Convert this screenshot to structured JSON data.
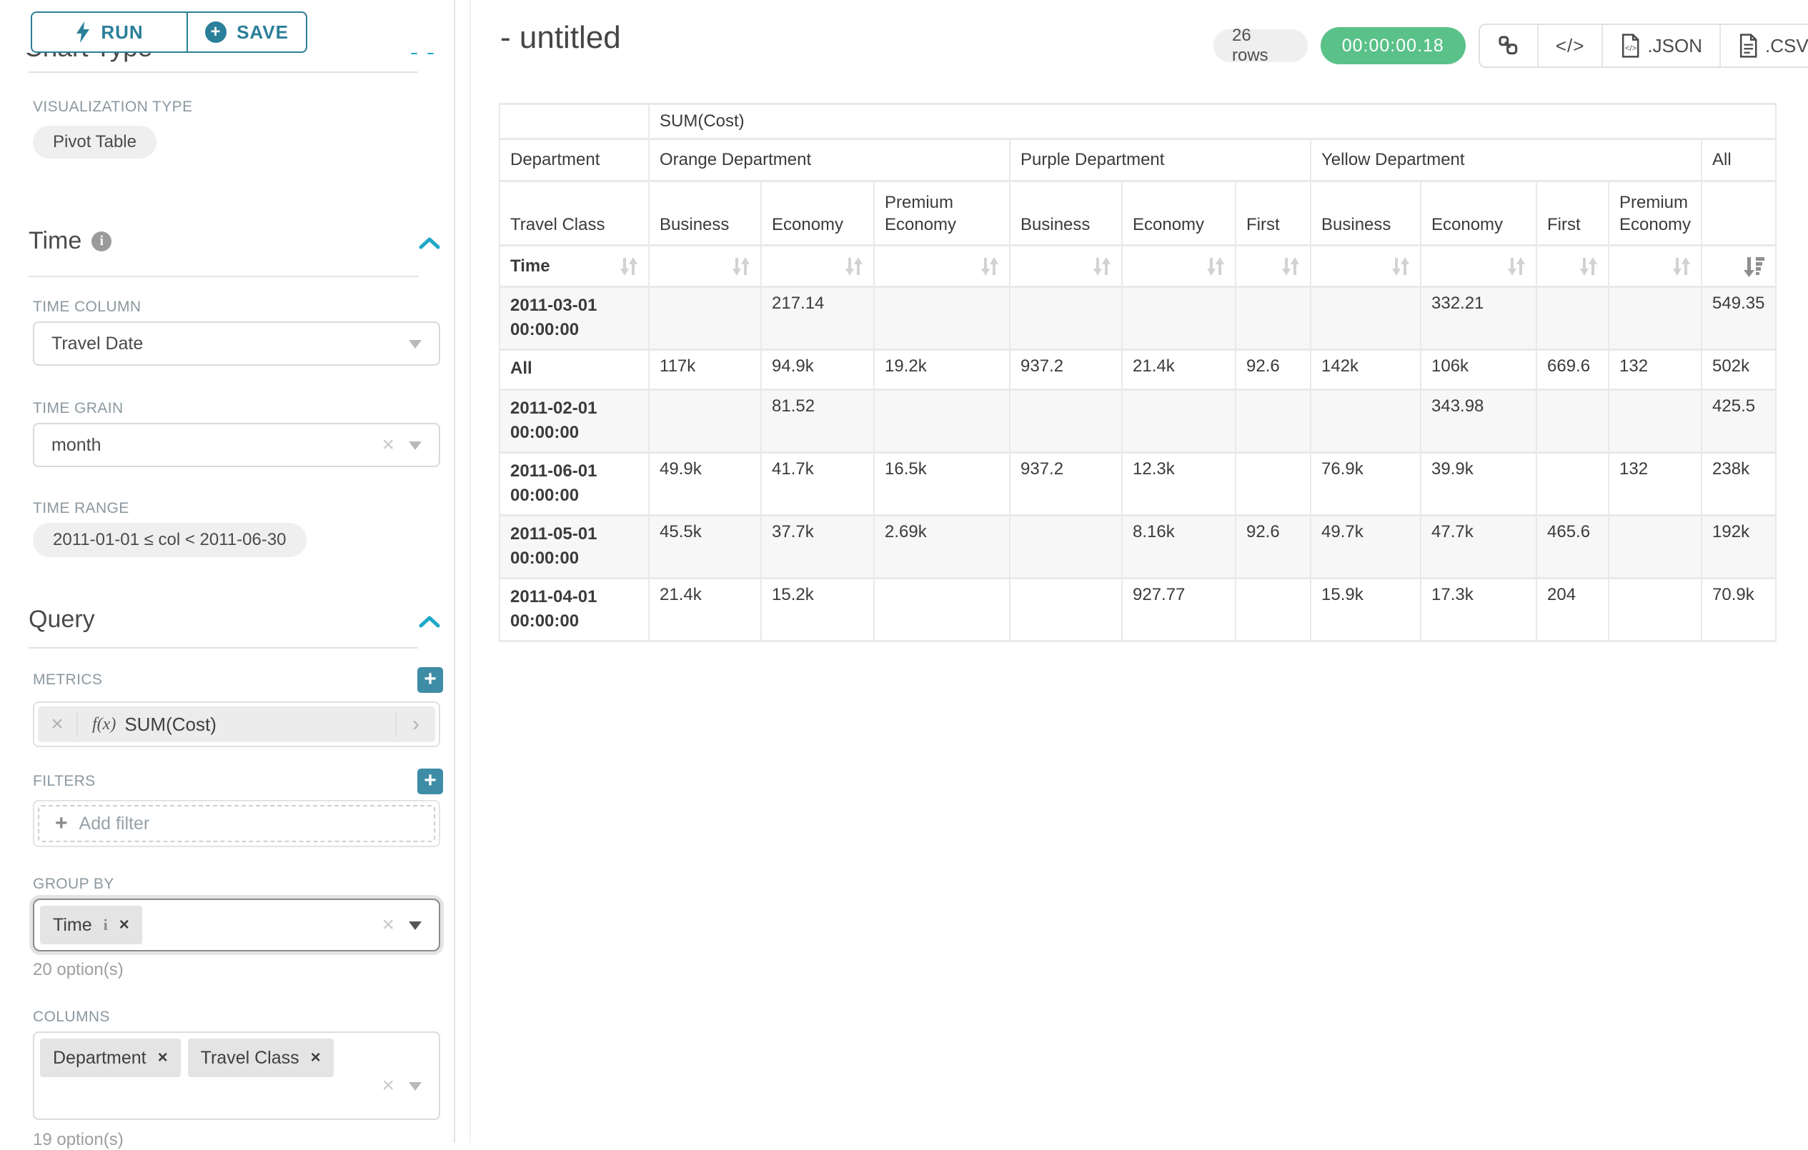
{
  "colors": {
    "accent": "#2a7f99",
    "accent_bright": "#1fa8c9",
    "success_green": "#5ac189",
    "chip_gray": "#e4e4e4"
  },
  "sidebar": {
    "run_button": "RUN",
    "save_button": "SAVE",
    "scrolled_heading": "Chart Type",
    "viz_section": {
      "label": "VISUALIZATION TYPE",
      "value": "Pivot Table"
    },
    "time_section": {
      "title": "Time",
      "time_column": {
        "label": "TIME COLUMN",
        "value": "Travel Date"
      },
      "time_grain": {
        "label": "TIME GRAIN",
        "value": "month"
      },
      "time_range": {
        "label": "TIME RANGE",
        "value": "2011-01-01 ≤ col < 2011-06-30"
      }
    },
    "query_section": {
      "title": "Query",
      "metrics": {
        "label": "METRICS",
        "metric_prefix": "f(x)",
        "metric_name": "SUM(Cost)"
      },
      "filters": {
        "label": "FILTERS",
        "placeholder": "Add filter"
      },
      "group_by": {
        "label": "GROUP BY",
        "chips": [
          {
            "label": "Time",
            "info": true
          }
        ],
        "hint": "20 option(s)"
      },
      "columns": {
        "label": "COLUMNS",
        "chips": [
          {
            "label": "Department"
          },
          {
            "label": "Travel Class"
          }
        ],
        "hint": "19 option(s)"
      }
    }
  },
  "header": {
    "title": "- untitled",
    "row_count": "26 rows",
    "timer": "00:00:00.18",
    "export_json": ".JSON",
    "export_csv": ".CSV"
  },
  "pivot": {
    "metric_header": "SUM(Cost)",
    "row_dim_label": "Department",
    "col_groups": [
      {
        "label": "Orange Department",
        "span": 3
      },
      {
        "label": "Purple Department",
        "span": 3
      },
      {
        "label": "Yellow Department",
        "span": 4
      },
      {
        "label": "All",
        "span": 1
      }
    ],
    "leaf_dim_label": "Travel Class",
    "leaf_columns": [
      "Business",
      "Economy",
      "Premium Economy",
      "Business",
      "Economy",
      "First",
      "Business",
      "Economy",
      "First",
      "Premium Economy",
      ""
    ],
    "sort_row_label": "Time",
    "sorted_col_index": 10,
    "rows": [
      {
        "label": "2011-03-01 00:00:00",
        "values": [
          "",
          "217.14",
          "",
          "",
          "",
          "",
          "",
          "332.21",
          "",
          "",
          "549.35"
        ]
      },
      {
        "label": "All",
        "values": [
          "117k",
          "94.9k",
          "19.2k",
          "937.2",
          "21.4k",
          "92.6",
          "142k",
          "106k",
          "669.6",
          "132",
          "502k"
        ]
      },
      {
        "label": "2011-02-01 00:00:00",
        "values": [
          "",
          "81.52",
          "",
          "",
          "",
          "",
          "",
          "343.98",
          "",
          "",
          "425.5"
        ]
      },
      {
        "label": "2011-06-01 00:00:00",
        "values": [
          "49.9k",
          "41.7k",
          "16.5k",
          "937.2",
          "12.3k",
          "",
          "76.9k",
          "39.9k",
          "",
          "132",
          "238k"
        ]
      },
      {
        "label": "2011-05-01 00:00:00",
        "values": [
          "45.5k",
          "37.7k",
          "2.69k",
          "",
          "8.16k",
          "92.6",
          "49.7k",
          "47.7k",
          "465.6",
          "",
          "192k"
        ]
      },
      {
        "label": "2011-04-01 00:00:00",
        "values": [
          "21.4k",
          "15.2k",
          "",
          "",
          "927.77",
          "",
          "15.9k",
          "17.3k",
          "204",
          "",
          "70.9k"
        ]
      }
    ]
  }
}
